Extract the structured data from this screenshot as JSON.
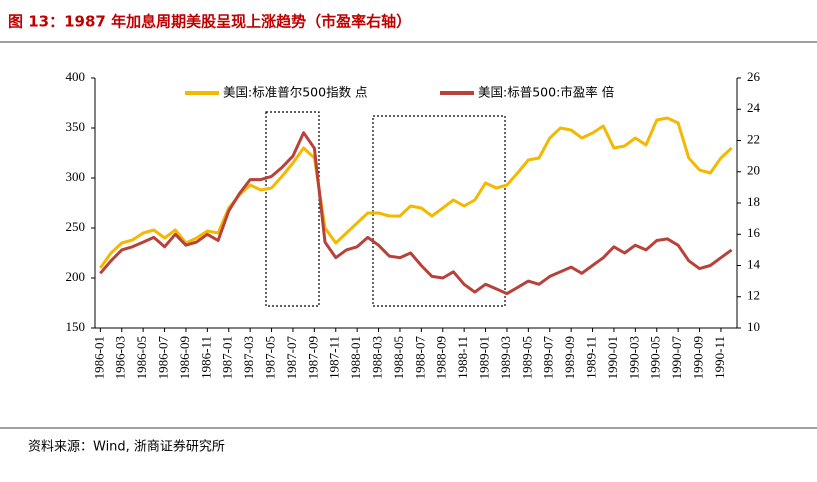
{
  "chart_data": {
    "type": "line",
    "title": "图 13：1987 年加息周期美股呈现上涨趋势（市盈率右轴）",
    "source": "资料来源：Wind, 浙商证券研究所",
    "categories": [
      "1986-01",
      null,
      "1986-03",
      null,
      "1986-05",
      null,
      "1986-07",
      null,
      "1986-09",
      null,
      "1986-11",
      null,
      "1987-01",
      null,
      "1987-03",
      null,
      "1987-05",
      null,
      "1987-07",
      null,
      "1987-09",
      null,
      "1987-11",
      null,
      "1988-01",
      null,
      "1988-03",
      null,
      "1988-05",
      null,
      "1988-07",
      null,
      "1988-09",
      null,
      "1988-11",
      null,
      "1989-01",
      null,
      "1989-03",
      null,
      "1989-05",
      null,
      "1989-07",
      null,
      "1989-09",
      null,
      "1989-11",
      null,
      "1990-01",
      null,
      "1990-03",
      null,
      "1990-05",
      null,
      "1990-07",
      null,
      "1990-09",
      null,
      "1990-11",
      null
    ],
    "series": [
      {
        "name": "美国:标准普尔500指数 点",
        "color": "#f5b800",
        "axis": "y",
        "values": [
          210,
          225,
          235,
          238,
          245,
          248,
          240,
          248,
          235,
          240,
          247,
          245,
          270,
          283,
          293,
          288,
          290,
          302,
          315,
          330,
          320,
          250,
          235,
          245,
          255,
          265,
          265,
          262,
          262,
          272,
          270,
          262,
          270,
          278,
          272,
          278,
          295,
          290,
          293,
          305,
          318,
          320,
          340,
          350,
          348,
          340,
          345,
          352,
          330,
          332,
          340,
          333,
          358,
          360,
          355,
          320,
          308,
          305,
          320,
          330
        ]
      },
      {
        "name": "美国:标普500:市盈率 倍",
        "color": "#b8413a",
        "axis": "y2",
        "values": [
          13.5,
          14.3,
          15,
          15.2,
          15.5,
          15.8,
          15.2,
          16,
          15.3,
          15.5,
          16,
          15.6,
          17.5,
          18.6,
          19.5,
          19.5,
          19.7,
          20.3,
          21,
          22.5,
          21.5,
          15.5,
          14.5,
          15,
          15.2,
          15.8,
          15.3,
          14.6,
          14.5,
          14.8,
          14,
          13.3,
          13.2,
          13.6,
          12.8,
          12.3,
          12.8,
          12.5,
          12.2,
          12.6,
          13,
          12.8,
          13.3,
          13.6,
          13.9,
          13.5,
          14,
          14.5,
          15.2,
          14.8,
          15.3,
          15,
          15.6,
          15.7,
          15.3,
          14.3,
          13.8,
          14,
          14.5,
          15
        ]
      }
    ],
    "ylim": [
      150,
      400
    ],
    "yticks": [
      150,
      200,
      250,
      300,
      350,
      400
    ],
    "y2lim": [
      10,
      26
    ],
    "y2ticks": [
      10,
      12,
      14,
      16,
      18,
      20,
      22,
      24,
      26
    ],
    "legend": "top",
    "grid": false
  }
}
